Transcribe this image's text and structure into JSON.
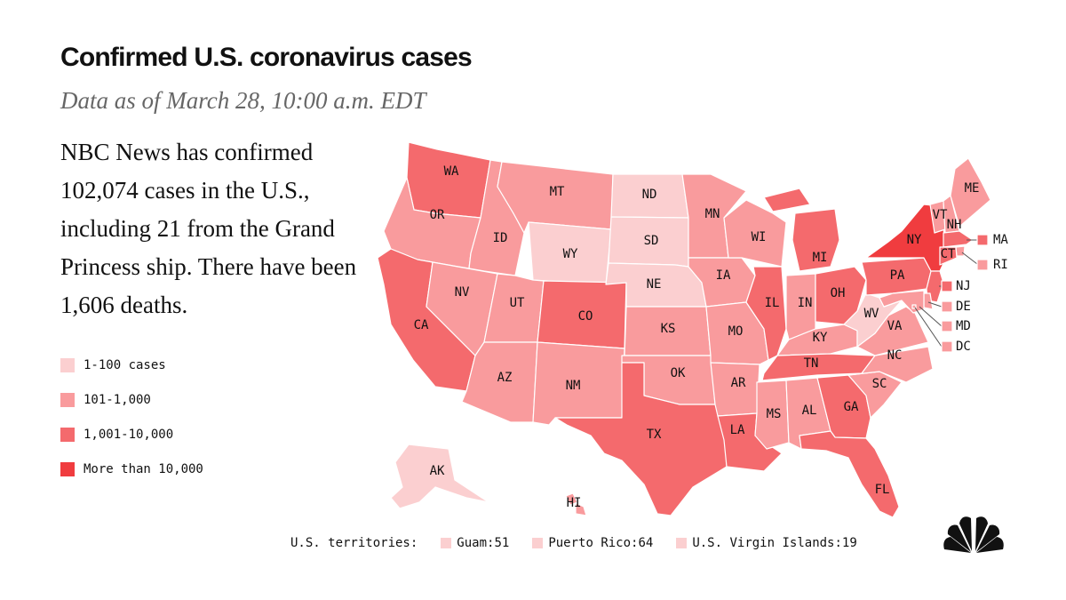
{
  "title": "Confirmed U.S. coronavirus cases",
  "subtitle": "Data as of March 28, 10:00 a.m. EDT",
  "summary": "NBC News has confirmed 102,074 cases in the U.S., including 21 from the Grand Princess ship.  There have been 1,606 deaths.",
  "colors": {
    "c1": "#fbcfd0",
    "c2": "#f99b9d",
    "c3": "#f46a6d",
    "c4": "#f03c3f"
  },
  "legend": [
    {
      "label": "1-100 cases",
      "bin": "c1"
    },
    {
      "label": "101-1,000",
      "bin": "c2"
    },
    {
      "label": "1,001-10,000",
      "bin": "c3"
    },
    {
      "label": "More than 10,000",
      "bin": "c4"
    }
  ],
  "states": {
    "WA": "c3",
    "OR": "c2",
    "CA": "c3",
    "NV": "c2",
    "ID": "c2",
    "MT": "c2",
    "WY": "c1",
    "UT": "c2",
    "AZ": "c2",
    "CO": "c3",
    "NM": "c2",
    "ND": "c1",
    "SD": "c1",
    "NE": "c1",
    "KS": "c2",
    "OK": "c2",
    "TX": "c3",
    "MN": "c2",
    "IA": "c2",
    "MO": "c2",
    "AR": "c2",
    "LA": "c3",
    "WI": "c2",
    "IL": "c3",
    "MI": "c3",
    "IN": "c2",
    "OH": "c3",
    "KY": "c2",
    "TN": "c3",
    "MS": "c2",
    "AL": "c2",
    "GA": "c3",
    "FL": "c3",
    "SC": "c2",
    "NC": "c2",
    "VA": "c2",
    "WV": "c1",
    "PA": "c3",
    "NY": "c4",
    "VT": "c2",
    "NH": "c2",
    "ME": "c2",
    "MA": "c3",
    "RI": "c2",
    "CT": "c3",
    "NJ": "c3",
    "DE": "c2",
    "MD": "c2",
    "DC": "c2",
    "AK": "c1",
    "HI": "c2"
  },
  "territories": {
    "label": "U.S. territories:",
    "items": [
      {
        "label": "Guam:51",
        "bin": "c1"
      },
      {
        "label": "Puerto Rico:64",
        "bin": "c1"
      },
      {
        "label": "U.S. Virgin Islands:19",
        "bin": "c1"
      }
    ]
  },
  "logo": "nbc-peacock-icon"
}
